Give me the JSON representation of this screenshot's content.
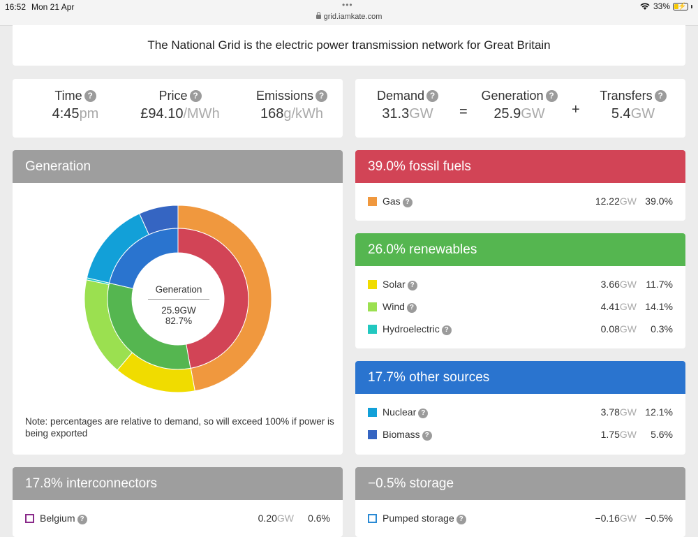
{
  "status_bar": {
    "time": "16:52",
    "date": "Mon 21 Apr",
    "url": "grid.iamkate.com",
    "battery": "33%"
  },
  "intro": "The National Grid is the electric power transmission network for Great Britain",
  "left_stats": {
    "time": {
      "label": "Time",
      "value": "4:45",
      "unit": "pm"
    },
    "price": {
      "label": "Price",
      "value": "£94.10",
      "unit": "/MWh"
    },
    "emissions": {
      "label": "Emissions",
      "value": "168",
      "unit": "g/kWh"
    }
  },
  "right_stats": {
    "demand": {
      "label": "Demand",
      "value": "31.3",
      "unit": "GW"
    },
    "equals": "=",
    "generation": {
      "label": "Generation",
      "value": "25.9",
      "unit": "GW"
    },
    "plus": "+",
    "transfers": {
      "label": "Transfers",
      "value": "5.4",
      "unit": "GW"
    }
  },
  "generation_panel": {
    "title": "Generation",
    "center_label": "Generation",
    "center_gw": "25.9GW",
    "center_pct": "82.7%",
    "note": "Note: percentages are relative to demand, so will exceed 100% if power is being exported"
  },
  "fossil": {
    "title": "39.0% fossil fuels",
    "color": "#d24456",
    "rows": [
      {
        "label": "Gas",
        "gw": "12.22",
        "unit": "GW",
        "pct": "39.0%",
        "color": "#f0983e"
      }
    ]
  },
  "renewables": {
    "title": "26.0% renewables",
    "color": "#55b650",
    "rows": [
      {
        "label": "Solar",
        "gw": "3.66",
        "unit": "GW",
        "pct": "11.7%",
        "color": "#f0dc00"
      },
      {
        "label": "Wind",
        "gw": "4.41",
        "unit": "GW",
        "pct": "14.1%",
        "color": "#9be050"
      },
      {
        "label": "Hydroelectric",
        "gw": "0.08",
        "unit": "GW",
        "pct": "0.3%",
        "color": "#22c8c0"
      }
    ]
  },
  "other": {
    "title": "17.7% other sources",
    "color": "#2a74cf",
    "rows": [
      {
        "label": "Nuclear",
        "gw": "3.78",
        "unit": "GW",
        "pct": "12.1%",
        "color": "#12a0d8"
      },
      {
        "label": "Biomass",
        "gw": "1.75",
        "unit": "GW",
        "pct": "5.6%",
        "color": "#3565c2"
      }
    ]
  },
  "interconnectors": {
    "title": "17.8% interconnectors",
    "rows": [
      {
        "label": "Belgium",
        "gw": "0.20",
        "unit": "GW",
        "pct": "0.6%",
        "color": "#8a2a8a"
      }
    ]
  },
  "storage": {
    "title": "−0.5% storage",
    "rows": [
      {
        "label": "Pumped storage",
        "gw": "−0.16",
        "unit": "GW",
        "pct": "−0.5%",
        "color": "#2a8ad4"
      }
    ]
  },
  "donut": {
    "outer": [
      {
        "name": "Gas",
        "value": 39.0,
        "color": "#f0983e"
      },
      {
        "name": "Solar",
        "value": 11.7,
        "color": "#f0dc00"
      },
      {
        "name": "Wind",
        "value": 14.1,
        "color": "#9be050"
      },
      {
        "name": "Hydroelectric",
        "value": 0.3,
        "color": "#22c8c0"
      },
      {
        "name": "Nuclear",
        "value": 12.1,
        "color": "#12a0d8"
      },
      {
        "name": "Biomass",
        "value": 5.6,
        "color": "#3565c2"
      }
    ],
    "inner": [
      {
        "name": "fossil fuels",
        "value": 39.0,
        "color": "#d24456"
      },
      {
        "name": "renewables",
        "value": 26.0,
        "color": "#55b650"
      },
      {
        "name": "other sources",
        "value": 17.7,
        "color": "#2a74cf"
      }
    ]
  }
}
